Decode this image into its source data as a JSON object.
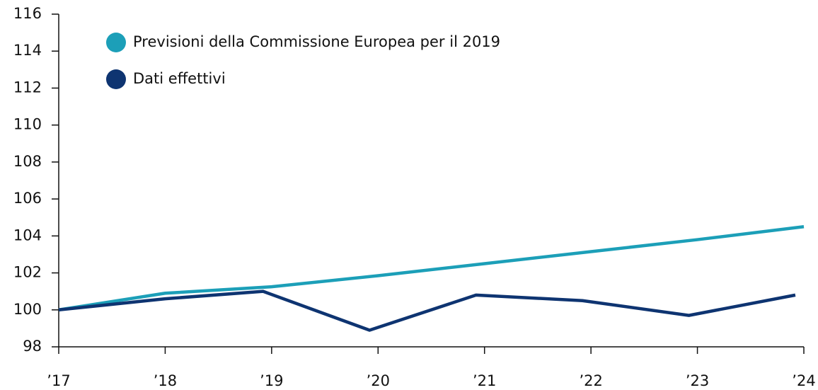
{
  "chart_data": {
    "type": "line",
    "series": [
      {
        "name": "Previsioni della Commissione Europea per il 2019",
        "color": "#1c9fb8",
        "x": [
          2017,
          2018,
          2019,
          2020,
          2021,
          2022,
          2023,
          2024
        ],
        "values": [
          100,
          100.9,
          101.25,
          101.85,
          102.5,
          103.15,
          103.8,
          104.5
        ]
      },
      {
        "name": "Dati effettivi",
        "color": "#0e3471",
        "x": [
          2017,
          2018,
          2018.92,
          2019.92,
          2020.92,
          2021.92,
          2022.92,
          2023.92
        ],
        "values": [
          100,
          100.6,
          101.0,
          98.9,
          100.8,
          100.5,
          99.7,
          100.8
        ]
      }
    ],
    "xlim": [
      2017,
      2024
    ],
    "xticks": [
      {
        "value": 2017,
        "label": "’17"
      },
      {
        "value": 2018,
        "label": "’18"
      },
      {
        "value": 2019,
        "label": "’19"
      },
      {
        "value": 2020,
        "label": "’20"
      },
      {
        "value": 2021,
        "label": "’21"
      },
      {
        "value": 2022,
        "label": "’22"
      },
      {
        "value": 2023,
        "label": "’23"
      },
      {
        "value": 2024,
        "label": "’24"
      }
    ],
    "ylim": [
      98,
      116
    ],
    "yticks": [
      98,
      100,
      102,
      104,
      106,
      108,
      110,
      112,
      114,
      116
    ],
    "legend": "top-left"
  }
}
